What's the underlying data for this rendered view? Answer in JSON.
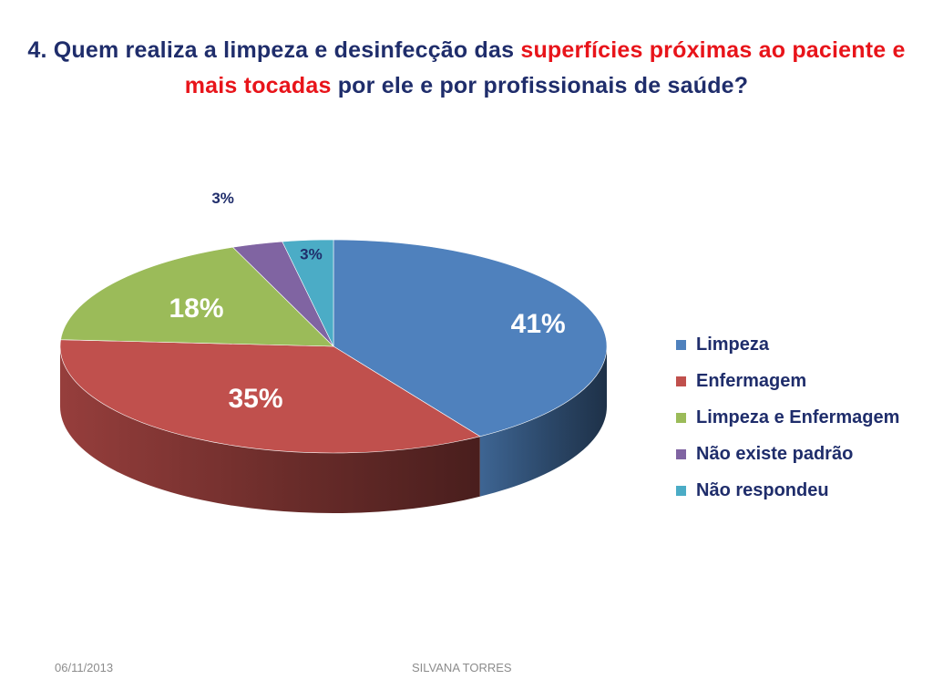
{
  "title": {
    "part1": "4. Quem realiza a limpeza e desinfecção das ",
    "part2": "superfícies próximas ao paciente e mais tocadas",
    "part3": " por ele e por profissionais de saúde?"
  },
  "chart_data": {
    "type": "pie",
    "categories": [
      "Limpeza",
      "Enfermagem",
      "Limpeza e Enfermagem",
      "Não existe padrão",
      "Não respondeu"
    ],
    "values": [
      41,
      35,
      18,
      3,
      3
    ],
    "data_labels": [
      "41%",
      "35%",
      "18%",
      "3%",
      "3%"
    ],
    "colors": [
      "#4f81bd",
      "#c0504d",
      "#9bbb59",
      "#8064a2",
      "#4bacc6"
    ],
    "legend_position": "right",
    "style": "3d"
  },
  "footer": {
    "date": "06/11/2013",
    "author": "SILVANA TORRES"
  }
}
